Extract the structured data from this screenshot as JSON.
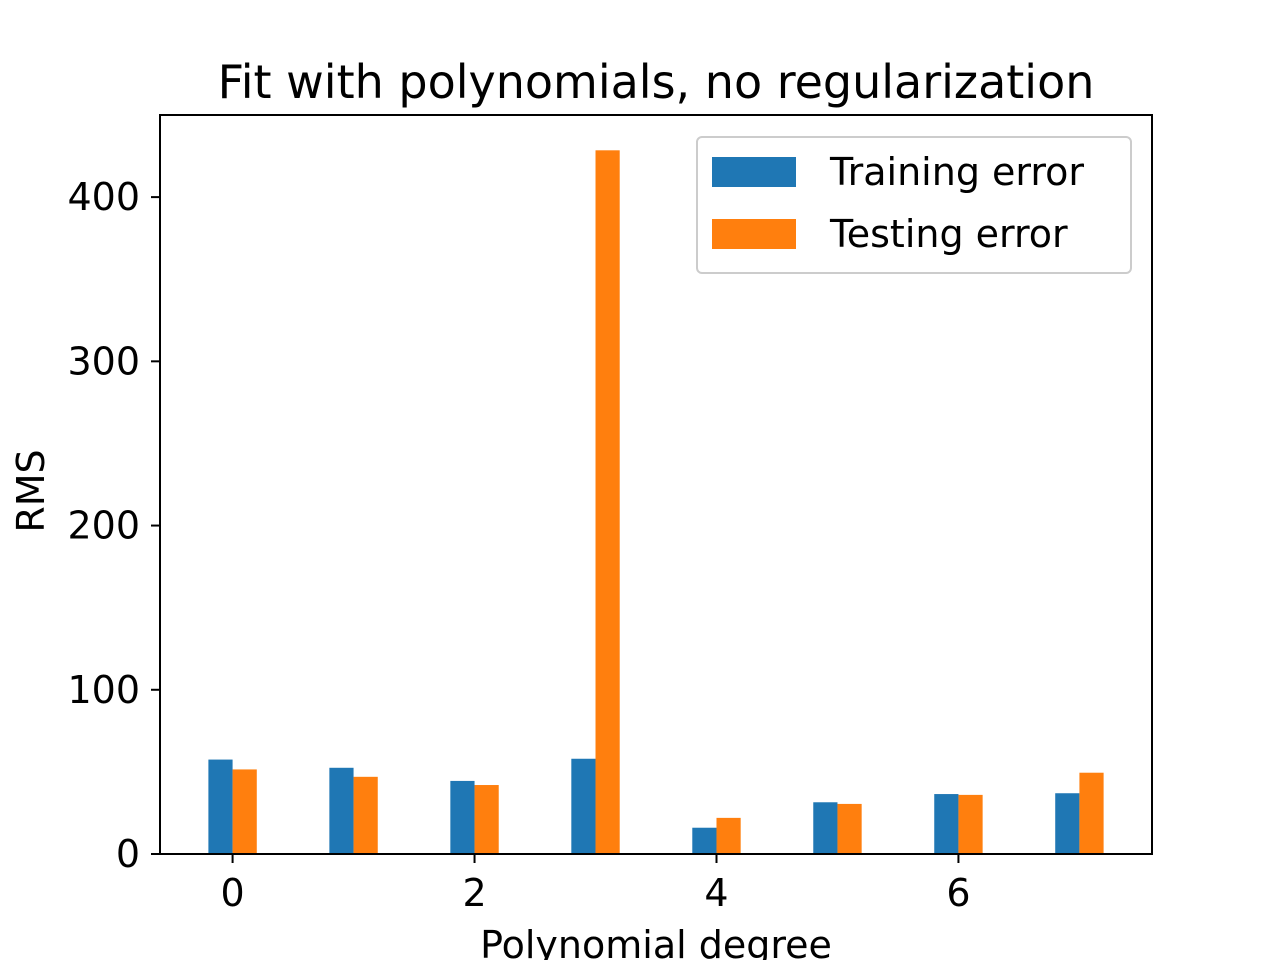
{
  "chart_data": {
    "type": "bar",
    "title": "Fit with polynomials, no regularization",
    "xlabel": "Polynomial degree",
    "ylabel": "RMS",
    "x": [
      0,
      1,
      2,
      3,
      4,
      5,
      6,
      7
    ],
    "xticks": [
      0,
      2,
      4,
      6
    ],
    "yticks": [
      0,
      100,
      200,
      300,
      400
    ],
    "xlim": [
      -0.6,
      7.6
    ],
    "ylim": [
      0,
      450
    ],
    "grid": false,
    "legend_position": "upper right",
    "series": [
      {
        "name": "Training error",
        "color": "#1f77b4",
        "values": [
          57.5,
          52.5,
          44.5,
          58.0,
          16.0,
          31.5,
          36.5,
          37.0
        ]
      },
      {
        "name": "Testing error",
        "color": "#ff7f0e",
        "values": [
          51.5,
          47.0,
          42.0,
          428.5,
          22.0,
          30.5,
          36.0,
          49.5
        ]
      }
    ]
  }
}
